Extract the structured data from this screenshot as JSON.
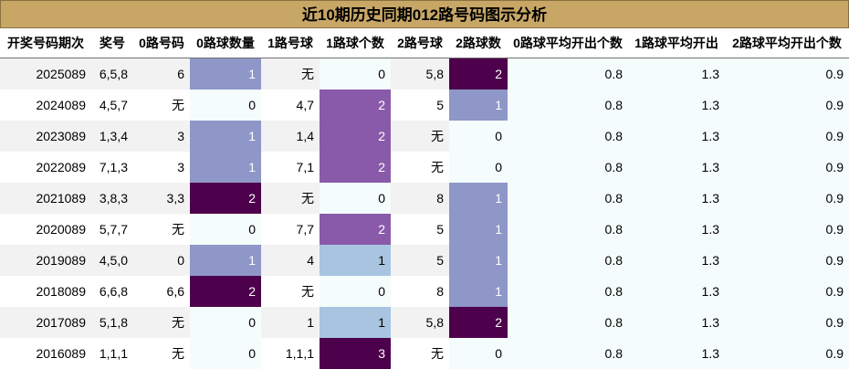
{
  "title": "近10期历史同期012路号码图示分析",
  "headers": [
    "开奖号码期次",
    "奖号",
    "0路号码",
    "0路球数量",
    "1路号球",
    "1路球个数",
    "2路号球",
    "2路球数",
    "0路球平均开出个数",
    "1路球平均开出",
    "2路球平均开出个数"
  ],
  "rows": [
    {
      "issue": "2025089",
      "nums": "6,5,8",
      "r0": "6",
      "c0": "1",
      "r1": "无",
      "c1": "0",
      "r2": "5,8",
      "c2": "2",
      "a0": "0.8",
      "a1": "1.3",
      "a2": "0.9"
    },
    {
      "issue": "2024089",
      "nums": "4,5,7",
      "r0": "无",
      "c0": "0",
      "r1": "4,7",
      "c1": "2",
      "r2": "5",
      "c2": "1",
      "a0": "0.8",
      "a1": "1.3",
      "a2": "0.9"
    },
    {
      "issue": "2023089",
      "nums": "1,3,4",
      "r0": "3",
      "c0": "1",
      "r1": "1,4",
      "c1": "2",
      "r2": "无",
      "c2": "0",
      "a0": "0.8",
      "a1": "1.3",
      "a2": "0.9"
    },
    {
      "issue": "2022089",
      "nums": "7,1,3",
      "r0": "3",
      "c0": "1",
      "r1": "7,1",
      "c1": "2",
      "r2": "无",
      "c2": "0",
      "a0": "0.8",
      "a1": "1.3",
      "a2": "0.9"
    },
    {
      "issue": "2021089",
      "nums": "3,8,3",
      "r0": "3,3",
      "c0": "2",
      "r1": "无",
      "c1": "0",
      "r2": "8",
      "c2": "1",
      "a0": "0.8",
      "a1": "1.3",
      "a2": "0.9"
    },
    {
      "issue": "2020089",
      "nums": "5,7,7",
      "r0": "无",
      "c0": "0",
      "r1": "7,7",
      "c1": "2",
      "r2": "5",
      "c2": "1",
      "a0": "0.8",
      "a1": "1.3",
      "a2": "0.9"
    },
    {
      "issue": "2019089",
      "nums": "4,5,0",
      "r0": "0",
      "c0": "1",
      "r1": "4",
      "c1": "1",
      "r2": "5",
      "c2": "1",
      "a0": "0.8",
      "a1": "1.3",
      "a2": "0.9"
    },
    {
      "issue": "2018089",
      "nums": "6,6,8",
      "r0": "6,6",
      "c0": "2",
      "r1": "无",
      "c1": "0",
      "r2": "8",
      "c2": "1",
      "a0": "0.8",
      "a1": "1.3",
      "a2": "0.9"
    },
    {
      "issue": "2017089",
      "nums": "5,1,8",
      "r0": "无",
      "c0": "0",
      "r1": "1",
      "c1": "1",
      "r2": "5,8",
      "c2": "2",
      "a0": "0.8",
      "a1": "1.3",
      "a2": "0.9"
    },
    {
      "issue": "2016089",
      "nums": "1,1,1",
      "r0": "无",
      "c0": "0",
      "r1": "1,1,1",
      "c1": "3",
      "r2": "无",
      "c2": "0",
      "a0": "0.8",
      "a1": "1.3",
      "a2": "0.9"
    }
  ],
  "cell_colors": {
    "c0": {
      "0": "c0",
      "1": "c1b",
      "2": "c3"
    },
    "c1": {
      "0": "c0",
      "1": "c1",
      "2": "c2",
      "3": "c3"
    },
    "c2": {
      "0": "c0",
      "1": "c1b",
      "2": "c3"
    }
  }
}
